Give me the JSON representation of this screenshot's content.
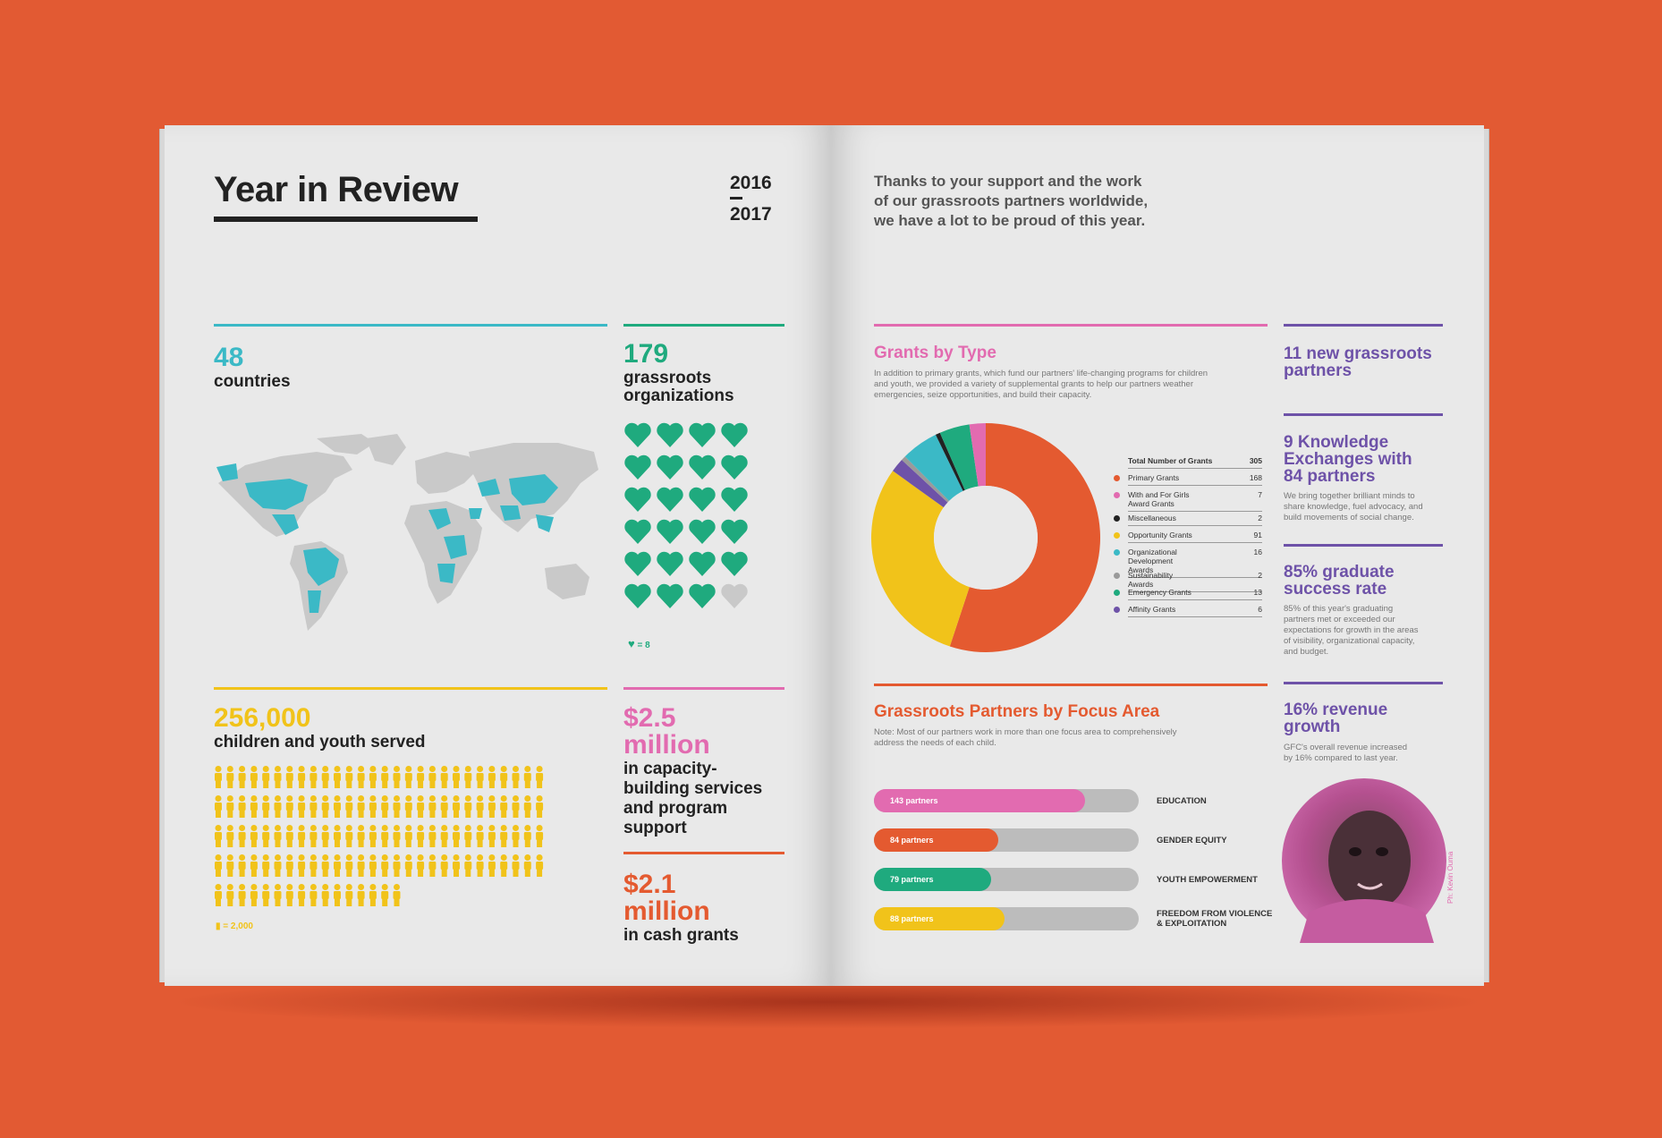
{
  "colors": {
    "background": "#e25a33",
    "paper": "#e9e9e9",
    "teal": "#3bb9c6",
    "green": "#1faa7e",
    "yellow": "#f1c31a",
    "pink": "#e26bb0",
    "orange": "#e45a30",
    "purple": "#6e52a8",
    "grey": "#bcbcbc"
  },
  "left": {
    "title": "Year in Review",
    "year_start": "2016",
    "year_end": "2017",
    "countries": {
      "num": "48",
      "label": "countries"
    },
    "orgs": {
      "num": "179",
      "label_line1": "grassroots",
      "label_line2": "organizations",
      "legend": "= 8",
      "count": 23
    },
    "children": {
      "num": "256,000",
      "label": "children and youth served",
      "legend": "= 2,000",
      "count": 128
    },
    "capacity": {
      "num1": "$2.5",
      "num2": "million",
      "label": [
        "in capacity-",
        "building services",
        "and program",
        "support"
      ]
    },
    "cash": {
      "num1": "$2.1",
      "num2": "million",
      "label": "in cash grants"
    }
  },
  "right": {
    "intro": [
      "Thanks to your support and the work",
      "of our grassroots partners worldwide,",
      "we have a lot to be proud of this year."
    ],
    "grants": {
      "title": "Grants by Type",
      "desc": [
        "In addition to primary grants, which fund our partners' life-changing programs for children",
        "and youth, we provided a variety of supplemental grants to help our partners weather",
        "emergencies, seize opportunities, and build their capacity."
      ],
      "total_label": "Total Number of Grants",
      "total_value": "305"
    },
    "focus": {
      "title": "Grassroots Partners by Focus Area",
      "desc": [
        "Note: Most of our partners work in more than one focus area to comprehensively",
        "address the needs of each child."
      ]
    },
    "side": [
      {
        "title": [
          "11 new grassroots",
          "partners"
        ],
        "body": []
      },
      {
        "title": [
          "9 Knowledge",
          "Exchanges with",
          "84 partners"
        ],
        "body": [
          "We bring together brilliant minds to",
          "share knowledge, fuel advocacy, and",
          "build movements of social change."
        ]
      },
      {
        "title": [
          "85% graduate",
          "success rate"
        ],
        "body": [
          "85% of this year's graduating",
          "partners met or exceeded our",
          "expectations for growth in the areas",
          "of visibility, organizational capacity,",
          "and budget."
        ]
      },
      {
        "title": [
          "16% revenue",
          "growth"
        ],
        "body": [
          "GFC's overall revenue increased",
          "by 16% compared to last year."
        ]
      }
    ],
    "photo_credit": "Ph: Kevin Ouma"
  },
  "chart_data": [
    {
      "type": "pie",
      "title": "Grants by Type",
      "total_label": "Total Number of Grants",
      "total": 305,
      "categories": [
        "Primary Grants",
        "With and For Girls Award Grants",
        "Miscellaneous",
        "Opportunity Grants",
        "Organizational Development Awards",
        "Sustainability Awards",
        "Emergency Grants",
        "Affinity Grants"
      ],
      "values": [
        168,
        7,
        2,
        91,
        16,
        2,
        13,
        6
      ],
      "colors": [
        "#e45a30",
        "#e26bb0",
        "#222222",
        "#f1c31a",
        "#3bb9c6",
        "#9a9a9a",
        "#1faa7e",
        "#6e52a8"
      ],
      "order_clockwise_from_top": [
        0,
        3,
        7,
        5,
        4,
        2,
        6,
        1
      ],
      "legend": "right"
    },
    {
      "type": "bar",
      "title": "Grassroots Partners by Focus Area",
      "categories": [
        "EDUCATION",
        "GENDER EQUITY",
        "YOUTH EMPOWERMENT",
        "FREEDOM FROM VIOLENCE & EXPLOITATION"
      ],
      "category_lines": [
        [
          "EDUCATION"
        ],
        [
          "GENDER EQUITY"
        ],
        [
          "YOUTH EMPOWERMENT"
        ],
        [
          "FREEDOM FROM VIOLENCE",
          "& EXPLOITATION"
        ]
      ],
      "values": [
        143,
        84,
        79,
        88
      ],
      "labels": [
        "143 partners",
        "84 partners",
        "79 partners",
        "88 partners"
      ],
      "colors": [
        "#e26bb0",
        "#e45a30",
        "#1faa7e",
        "#f1c31a"
      ],
      "max": 179
    }
  ]
}
